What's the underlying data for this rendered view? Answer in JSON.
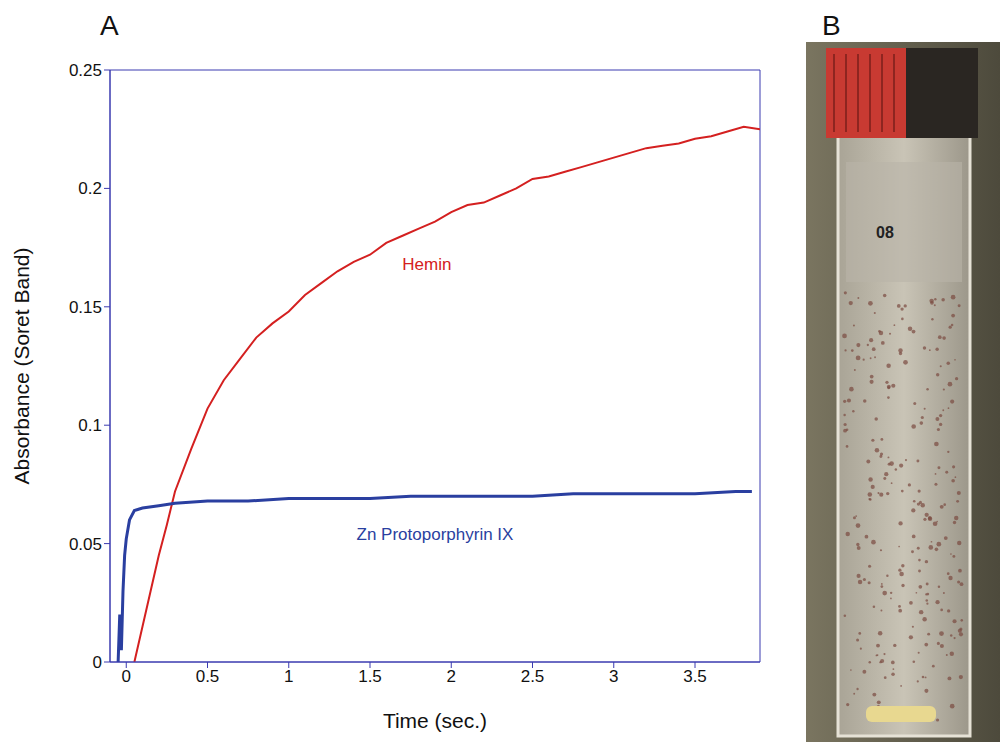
{
  "chart_data": {
    "type": "line",
    "panel": "A",
    "xlabel": "Time (sec.)",
    "ylabel": "Absorbance (Soret Band)",
    "xlim": [
      -0.1,
      3.9
    ],
    "xticks": [
      0,
      0.5,
      1,
      1.5,
      2,
      2.5,
      3,
      3.5
    ],
    "ylim": [
      0,
      0.25
    ],
    "yticks": [
      0,
      0.05,
      0.1,
      0.15,
      0.2,
      0.25
    ],
    "grid": false,
    "series": [
      {
        "name": "Hemin",
        "color": "#d42020",
        "x": [
          0.05,
          0.1,
          0.15,
          0.2,
          0.25,
          0.3,
          0.4,
          0.5,
          0.6,
          0.7,
          0.8,
          0.9,
          1.0,
          1.1,
          1.2,
          1.3,
          1.4,
          1.5,
          1.6,
          1.7,
          1.8,
          1.9,
          2.0,
          2.1,
          2.2,
          2.3,
          2.4,
          2.5,
          2.6,
          2.7,
          2.8,
          2.9,
          3.0,
          3.1,
          3.2,
          3.3,
          3.4,
          3.5,
          3.6,
          3.7,
          3.8,
          3.9
        ],
        "values": [
          0,
          0.015,
          0.03,
          0.045,
          0.058,
          0.072,
          0.09,
          0.107,
          0.119,
          0.128,
          0.137,
          0.143,
          0.148,
          0.155,
          0.16,
          0.165,
          0.169,
          0.172,
          0.177,
          0.18,
          0.183,
          0.186,
          0.19,
          0.193,
          0.194,
          0.197,
          0.2,
          0.204,
          0.205,
          0.207,
          0.209,
          0.211,
          0.213,
          0.215,
          0.217,
          0.218,
          0.219,
          0.221,
          0.222,
          0.224,
          0.226,
          0.225
        ]
      },
      {
        "name": "Zn Protoporphyrin IX",
        "color": "#2a3fa0",
        "x": [
          -0.05,
          -0.04,
          -0.03,
          -0.02,
          -0.01,
          0,
          0.02,
          0.05,
          0.1,
          0.2,
          0.3,
          0.5,
          0.75,
          1,
          1.25,
          1.5,
          1.75,
          2,
          2.25,
          2.5,
          2.75,
          3,
          3.25,
          3.5,
          3.75,
          3.85
        ],
        "values": [
          0,
          0.02,
          0.005,
          0.03,
          0.045,
          0.052,
          0.06,
          0.064,
          0.065,
          0.066,
          0.067,
          0.068,
          0.068,
          0.069,
          0.069,
          0.069,
          0.07,
          0.07,
          0.07,
          0.07,
          0.071,
          0.071,
          0.071,
          0.071,
          0.072,
          0.072
        ]
      }
    ],
    "annotations": [
      {
        "text": "Hemin",
        "x": 1.85,
        "y": 0.168,
        "color": "#d42020"
      },
      {
        "text": "Zn Protoporphyrin IX",
        "x": 1.9,
        "y": 0.054,
        "color": "#2a3fa0"
      }
    ]
  },
  "image": {
    "panel": "B",
    "type": "photo",
    "text": "08"
  }
}
